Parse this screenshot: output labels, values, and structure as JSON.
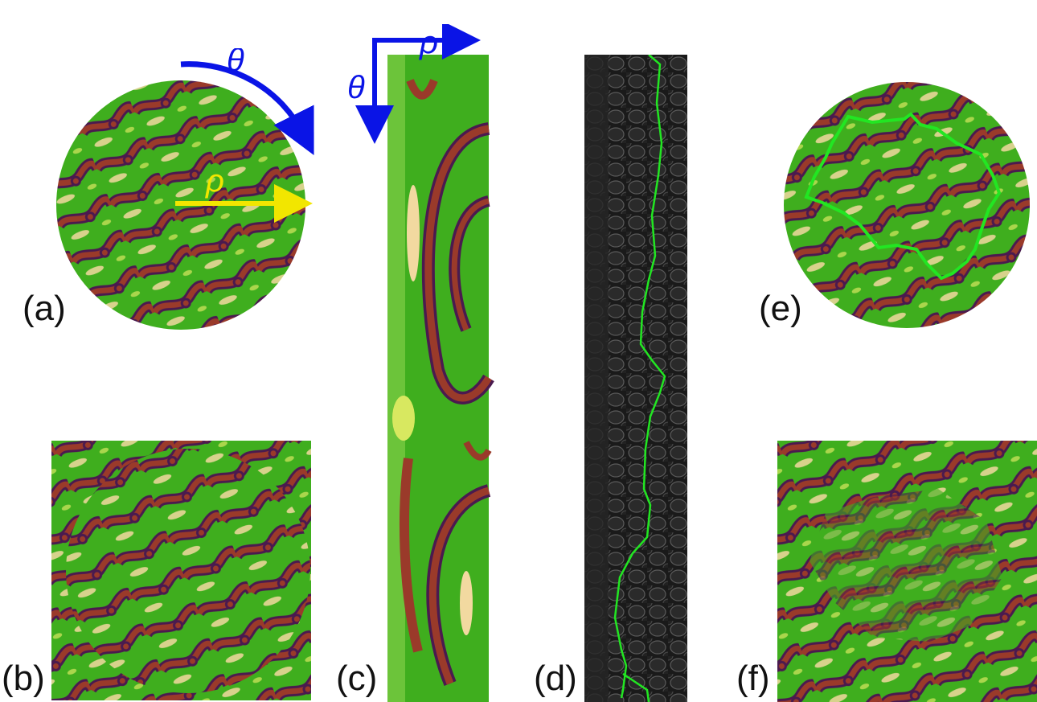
{
  "panels": {
    "a": {
      "label": "(a)"
    },
    "b": {
      "label": "(b)"
    },
    "c": {
      "label": "(c)"
    },
    "d": {
      "label": "(d)"
    },
    "e": {
      "label": "(e)"
    },
    "f": {
      "label": "(f)"
    }
  },
  "arrows": {
    "theta_a": {
      "symbol": "θ",
      "color": "#0a14e6"
    },
    "rho_a": {
      "symbol": "ρ",
      "color": "#f2e600"
    },
    "rho_c": {
      "symbol": "ρ",
      "color": "#0a14e6"
    },
    "theta_c": {
      "symbol": "θ",
      "color": "#0a14e6"
    }
  },
  "colors": {
    "pattern_green": "#3fae1e",
    "pattern_purple": "#4a1a4f",
    "pattern_red": "#9a3a2a",
    "pattern_cream": "#f2d9a0",
    "contour_green": "#22e622",
    "dark_bg": "#1a1a1a"
  }
}
